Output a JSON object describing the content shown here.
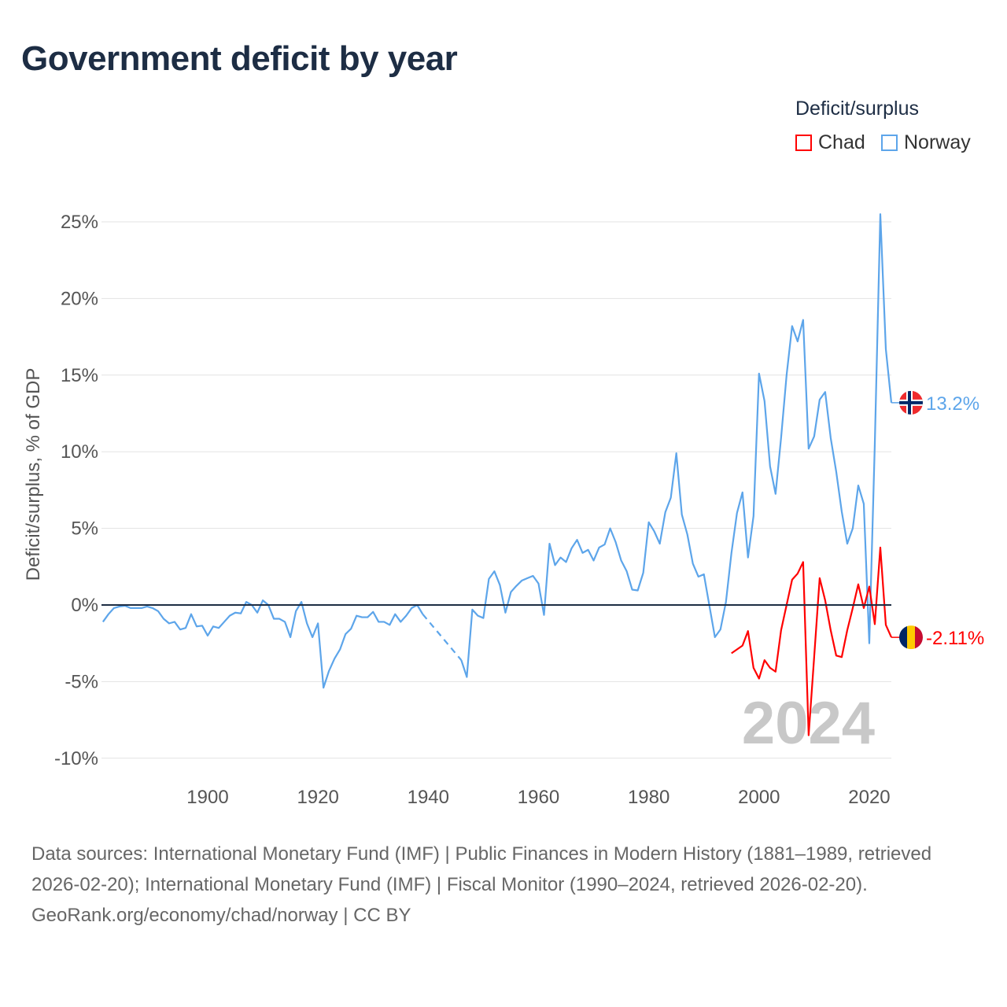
{
  "title": "Government deficit by year",
  "legend": {
    "title": "Deficit/surplus",
    "entries": [
      {
        "name": "Chad",
        "color": "#ff0000"
      },
      {
        "name": "Norway",
        "color": "#5da5ea"
      }
    ]
  },
  "watermark_year": "2024",
  "footer": {
    "sources": "Data sources: International Monetary Fund (IMF) | Public Finances in Modern History (1881–1989, retrieved 2026-02-20); International Monetary Fund (IMF) | Fiscal Monitor (1990–2024, retrieved 2026-02-20).",
    "credit": "GeoRank.org/economy/chad/norway | CC BY"
  },
  "chart_data": {
    "type": "line",
    "title": "Government deficit by year",
    "xlabel": "",
    "ylabel": "Deficit/surplus, % of GDP",
    "xlim": [
      1881,
      2024
    ],
    "ylim": [
      -10,
      25
    ],
    "x_ticks": [
      1900,
      1920,
      1940,
      1960,
      1980,
      2000,
      2020
    ],
    "x_tick_labels": [
      "1900",
      "1920",
      "1940",
      "1960",
      "1980",
      "2000",
      "2020"
    ],
    "y_ticks": [
      25,
      20,
      15,
      10,
      5,
      0,
      -5,
      -10
    ],
    "y_tick_labels": [
      "25%",
      "20%",
      "15%",
      "10%",
      "5%",
      "0%",
      "-5%",
      "-10%"
    ],
    "grid": true,
    "legend_position": "top-right",
    "series": [
      {
        "name": "Norway",
        "color": "#5da5ea",
        "end_label": "13.2%",
        "start_year": 1881,
        "values": [
          -1.1,
          -0.6,
          -0.2,
          -0.1,
          -0.05,
          -0.2,
          -0.2,
          -0.2,
          -0.1,
          -0.2,
          -0.4,
          -0.9,
          -1.2,
          -1.1,
          -1.6,
          -1.5,
          -0.6,
          -1.4,
          -1.35,
          -2.0,
          -1.4,
          -1.5,
          -1.1,
          -0.7,
          -0.5,
          -0.55,
          0.2,
          0.0,
          -0.5,
          0.3,
          0.0,
          -0.9,
          -0.9,
          -1.1,
          -2.1,
          -0.4,
          0.2,
          -1.2,
          -2.1,
          -1.2,
          -5.4,
          -4.3,
          -3.5,
          -2.9,
          -1.9,
          -1.55,
          -0.7,
          -0.8,
          -0.8,
          -0.45,
          -1.1,
          -1.1,
          -1.3,
          -0.6,
          -1.1,
          -0.7,
          -0.2,
          0.0,
          -0.6,
          null,
          null,
          null,
          null,
          null,
          null,
          -3.6,
          -4.7,
          -0.3,
          -0.7,
          -0.85,
          1.7,
          2.2,
          1.3,
          -0.5,
          0.85,
          1.25,
          1.6,
          1.75,
          1.9,
          1.4,
          -0.65,
          4.0,
          2.6,
          3.1,
          2.8,
          3.7,
          4.25,
          3.4,
          3.6,
          2.9,
          3.75,
          3.95,
          5.0,
          4.1,
          2.9,
          2.2,
          1.0,
          0.95,
          2.1,
          5.4,
          4.8,
          4.0,
          6.05,
          7.0,
          9.9,
          5.9,
          4.6,
          2.7,
          1.85,
          2.0,
          -0.05,
          -2.1,
          -1.6,
          0.2,
          3.4,
          6.0,
          7.35,
          3.1,
          5.8,
          15.1,
          13.3,
          9.05,
          7.25,
          10.9,
          15.0,
          18.2,
          17.2,
          18.6,
          10.2,
          11.0,
          13.4,
          13.9,
          10.9,
          8.7,
          6.1,
          4.0,
          5.0,
          7.8,
          6.6,
          -2.5,
          10.5,
          25.5,
          16.7,
          13.2
        ]
      },
      {
        "name": "Chad",
        "color": "#ff0000",
        "end_label": "-2.11%",
        "start_year": 1995,
        "values": [
          -3.15,
          -2.9,
          -2.65,
          -1.7,
          -4.1,
          -4.8,
          -3.6,
          -4.1,
          -4.35,
          -1.65,
          0.0,
          1.65,
          2.05,
          2.8,
          -8.5,
          -3.4,
          1.75,
          0.3,
          -1.65,
          -3.3,
          -3.4,
          -1.65,
          -0.2,
          1.35,
          -0.2,
          1.2,
          -1.25,
          3.75,
          -1.3,
          -2.11
        ]
      }
    ]
  }
}
